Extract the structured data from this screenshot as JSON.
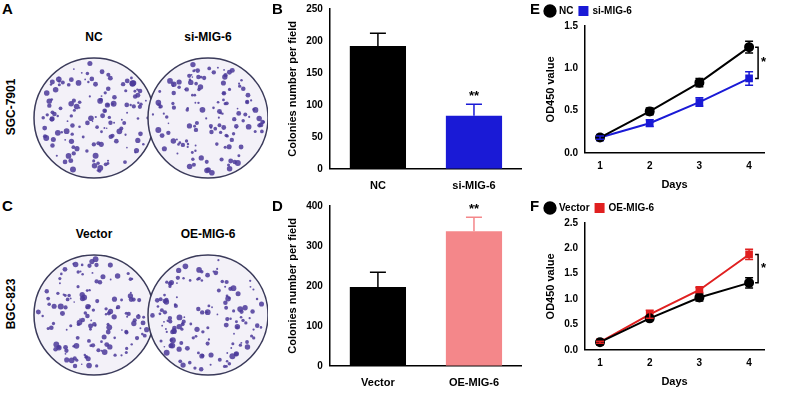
{
  "images": [
    {
      "panel": "A",
      "cell_line": "SGC-7901",
      "labels": [
        "NC",
        "si-MIG-6"
      ]
    },
    {
      "panel": "C",
      "cell_line": "BGC-823",
      "labels": [
        "Vector",
        "OE-MIG-6"
      ]
    }
  ],
  "chart_data": [
    {
      "panel": "B",
      "type": "bar",
      "y_label": "Colonies number per field",
      "categories": [
        "NC",
        "si-MIG-6"
      ],
      "values": [
        192,
        83
      ],
      "errors": [
        20,
        18
      ],
      "colors": [
        "#000000",
        "#1a1ad6"
      ],
      "ylim": [
        0,
        250
      ],
      "yticks": [
        0,
        50,
        100,
        150,
        200,
        250
      ],
      "grid": false,
      "annotations": [
        {
          "text": "**",
          "category": "si-MIG-6"
        }
      ]
    },
    {
      "panel": "D",
      "type": "bar",
      "y_label": "Colonies number per field",
      "categories": [
        "Vector",
        "OE-MIG-6"
      ],
      "values": [
        197,
        337
      ],
      "errors": [
        37,
        35
      ],
      "colors": [
        "#000000",
        "#f4878a"
      ],
      "ylim": [
        0,
        400
      ],
      "yticks": [
        0,
        100,
        200,
        300,
        400
      ],
      "grid": false,
      "annotations": [
        {
          "text": "**",
          "category": "OE-MIG-6"
        }
      ]
    },
    {
      "panel": "E",
      "type": "line",
      "x_label": "Days",
      "y_label": "OD450 value",
      "x": [
        1,
        2,
        3,
        4
      ],
      "xlim": [
        0.7,
        4.3
      ],
      "xticks": [
        1,
        2,
        3,
        4
      ],
      "ylim": [
        0,
        1.5
      ],
      "yticks": [
        {
          "value": 0,
          "label": "0.0"
        },
        {
          "value": 0.5,
          "label": "0.5"
        },
        {
          "value": 1,
          "label": "1.0"
        },
        {
          "value": 1.5,
          "label": "1.5"
        }
      ],
      "grid": false,
      "legend": "top-left",
      "series": [
        {
          "name": "NC",
          "color": "#000000",
          "marker": "circle",
          "line_style": "solid",
          "values": [
            0.18,
            0.49,
            0.83,
            1.25
          ],
          "errors": [
            0.02,
            0.04,
            0.05,
            0.07
          ]
        },
        {
          "name": "si-MIG-6",
          "color": "#1a1ad6",
          "marker": "square",
          "line_style": "solid",
          "values": [
            0.18,
            0.35,
            0.6,
            0.88
          ],
          "errors": [
            0.02,
            0.04,
            0.05,
            0.08
          ]
        }
      ],
      "annotations": [
        {
          "text": "*",
          "x": 4,
          "between": [
            "NC",
            "si-MIG-6"
          ]
        }
      ]
    },
    {
      "panel": "F",
      "type": "line",
      "x_label": "Days",
      "y_label": "OD450 value",
      "x": [
        1,
        2,
        3,
        4
      ],
      "xlim": [
        0.7,
        4.3
      ],
      "xticks": [
        1,
        2,
        3,
        4
      ],
      "ylim": [
        0,
        2.5
      ],
      "yticks": [
        {
          "value": 0,
          "label": "0.0"
        },
        {
          "value": 0.5,
          "label": "0.5"
        },
        {
          "value": 1,
          "label": "1.0"
        },
        {
          "value": 1.5,
          "label": "1.5"
        },
        {
          "value": 2,
          "label": "2.0"
        },
        {
          "value": 2.5,
          "label": "2.5"
        }
      ],
      "grid": false,
      "legend": "top-left",
      "series": [
        {
          "name": "Vector",
          "color": "#000000",
          "marker": "circle",
          "line_style": "solid",
          "values": [
            0.15,
            0.62,
            1.03,
            1.32
          ],
          "errors": [
            0.02,
            0.03,
            0.07,
            0.1
          ]
        },
        {
          "name": "OE-MIG-6",
          "color": "#e02020",
          "marker": "square",
          "line_style": "solid",
          "values": [
            0.15,
            0.7,
            1.18,
            1.88
          ],
          "errors": [
            0.02,
            0.08,
            0.05,
            0.1
          ]
        }
      ],
      "annotations": [
        {
          "text": "*",
          "x": 4,
          "between": [
            "Vector",
            "OE-MIG-6"
          ]
        }
      ]
    }
  ]
}
